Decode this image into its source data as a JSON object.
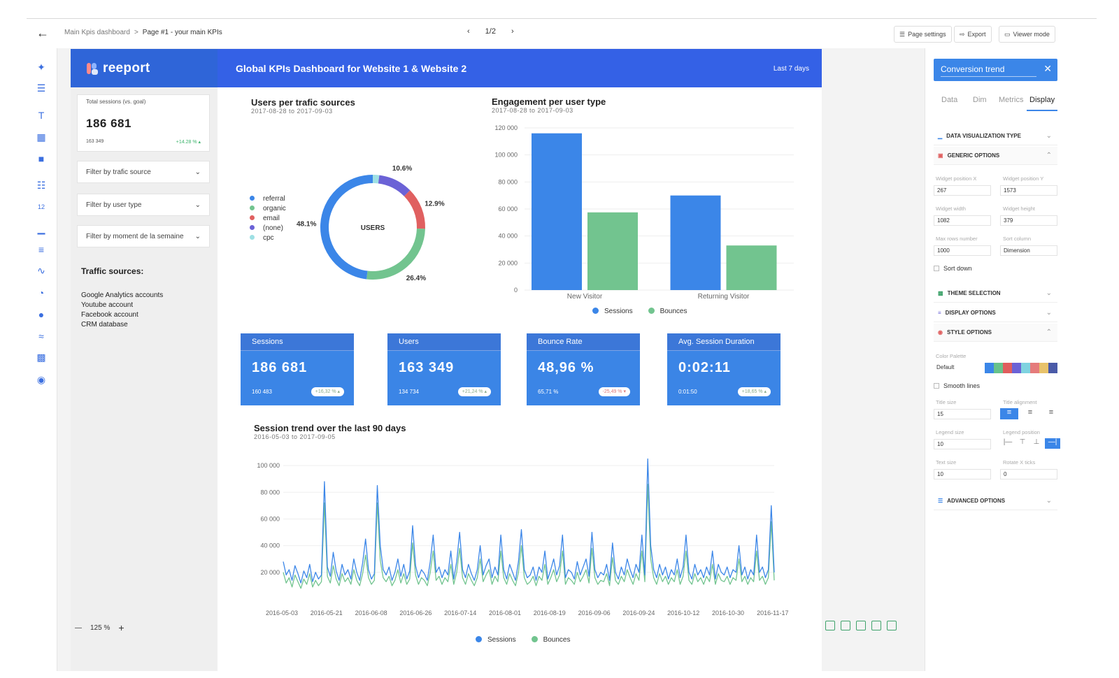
{
  "topbar": {
    "breadcrumb": [
      "Main Kpis dashboard",
      ">",
      "Page #1 - your main KPIs"
    ],
    "page_indicator": "1/2",
    "buttons": [
      "Page settings",
      "Export",
      "Viewer mode"
    ]
  },
  "brand": {
    "name": "reeport"
  },
  "header": {
    "title": "Global KPIs Dashboard for Website 1 & Website 2",
    "period": "Last 7 days"
  },
  "sidebar": {
    "kpi": {
      "label": "Total sessions (vs. goal)",
      "value": "186 681",
      "sub": "163 349",
      "change": "+14.28 % ▴"
    },
    "filters": [
      "Filter by trafic source",
      "Filter by user type",
      "Filter by moment de la semaine"
    ],
    "sources_title": "Traffic sources:",
    "sources": [
      "Google Analytics accounts",
      "Youtube account",
      "Facebook account",
      "CRM database"
    ]
  },
  "zoom": {
    "minus": "—",
    "value": "125 %",
    "plus": "+"
  },
  "kpis": [
    {
      "label": "Sessions",
      "value": "186 681",
      "sub": "160 483",
      "change": "+16,32 % ▴"
    },
    {
      "label": "Users",
      "value": "163 349",
      "sub": "134 734",
      "change": "+21,24 % ▴"
    },
    {
      "label": "Bounce Rate",
      "value": "48,96 %",
      "sub": "65,71 %",
      "change": "-25,49 % ▾"
    },
    {
      "label": "Avg. Session Duration",
      "value": "0:02:11",
      "sub": "0:01:50",
      "change": "+18,65 % ▴"
    }
  ],
  "right_panel": {
    "title": "Conversion trend",
    "tabs": [
      "Data",
      "Dim",
      "Metrics",
      "Display"
    ],
    "active_tab": "Display",
    "sections": {
      "dataviz": "DATA VISUALIZATION TYPE",
      "generic": "GENERIC OPTIONS",
      "theme": "THEME SELECTION",
      "display": "DISPLAY OPTIONS",
      "style": "STYLE OPTIONS",
      "advanced": "ADVANCED OPTIONS"
    },
    "fields": {
      "pos_x_label": "Widget position X",
      "pos_x": "267",
      "pos_y_label": "Widget position Y",
      "pos_y": "1573",
      "width_label": "Widget width",
      "width": "1082",
      "height_label": "Widget height",
      "height": "379",
      "maxrows_label": "Max rows number",
      "maxrows": "1000",
      "sortcol_label": "Sort column",
      "sortcol": "Dimension",
      "sortdown": "Sort down",
      "palette_label": "Color Palette",
      "palette": "Default",
      "smooth": "Smooth lines",
      "titlesize_label": "Title size",
      "titlesize": "15",
      "titlealign_label": "Title alignment",
      "legendsize_label": "Legend size",
      "legendsize": "10",
      "legendpos_label": "Legend position",
      "textsize_label": "Text size",
      "textsize": "10",
      "rotate_label": "Rotate X ticks",
      "rotate": "0"
    },
    "palette_colors": [
      "#3b86e8",
      "#67c28b",
      "#e05d5d",
      "#6b62d6",
      "#7fd3e0",
      "#e57b7b",
      "#e8c26a",
      "#4a5aa8"
    ]
  },
  "colors": {
    "blue": "#3b86e8",
    "green": "#72c48f",
    "red": "#e06060",
    "purple": "#6b62d6",
    "teal": "#9ee0e4"
  },
  "chart_data": [
    {
      "type": "pie",
      "title": "Users per trafic sources",
      "subtitle": "2017-08-28 to 2017-09-03",
      "center_label": "USERS",
      "labels": [
        "referral",
        "organic",
        "email",
        "(none)",
        "cpc"
      ],
      "values": [
        48.1,
        26.4,
        12.9,
        10.6,
        2.0
      ],
      "value_labels": [
        "48.1%",
        "26.4%",
        "12.9%",
        "10.6%",
        ""
      ],
      "colors": [
        "#3b86e8",
        "#72c48f",
        "#e06060",
        "#6b62d6",
        "#9ee0e4"
      ]
    },
    {
      "type": "bar",
      "title": "Engagement per user type",
      "subtitle": "2017-08-28 to 2017-09-03",
      "categories": [
        "New Visitor",
        "Returning Visitor"
      ],
      "series": [
        {
          "name": "Sessions",
          "values": [
            116000,
            70000
          ],
          "color": "#3b86e8"
        },
        {
          "name": "Bounces",
          "values": [
            57500,
            33000
          ],
          "color": "#72c48f"
        }
      ],
      "ylim": [
        0,
        120000
      ],
      "yticks": [
        "0",
        "20 000",
        "40 000",
        "60 000",
        "80 000",
        "100 000",
        "120 000"
      ]
    },
    {
      "type": "line",
      "title": "Session trend over the last 90 days",
      "subtitle": "2016-05-03 to 2017-09-05",
      "xticks": [
        "2016-05-03",
        "2016-05-21",
        "2016-06-08",
        "2016-06-26",
        "2016-07-14",
        "2016-08-01",
        "2016-08-19",
        "2016-09-06",
        "2016-09-24",
        "2016-10-12",
        "2016-10-30",
        "2016-11-17"
      ],
      "yticks": [
        "20 000",
        "40 000",
        "60 000",
        "80 000",
        "100 000"
      ],
      "ylim": [
        0,
        110000
      ],
      "series": [
        {
          "name": "Sessions",
          "color": "#3b86e8",
          "values": [
            28000,
            18000,
            22000,
            14000,
            25000,
            19000,
            12000,
            21000,
            16000,
            26000,
            13000,
            20000,
            15000,
            18000,
            88000,
            24000,
            17000,
            35000,
            21000,
            14000,
            26000,
            18000,
            22000,
            15000,
            30000,
            20000,
            14000,
            27000,
            45000,
            22000,
            15000,
            19000,
            85000,
            40000,
            22000,
            18000,
            24000,
            14000,
            20000,
            30000,
            17000,
            26000,
            15000,
            21000,
            55000,
            25000,
            16000,
            22000,
            19000,
            14000,
            28000,
            48000,
            20000,
            24000,
            16000,
            22000,
            18000,
            36000,
            15000,
            28000,
            50000,
            22000,
            16000,
            26000,
            19000,
            14000,
            22000,
            40000,
            18000,
            25000,
            30000,
            16000,
            24000,
            18000,
            48000,
            22000,
            15000,
            26000,
            20000,
            14000,
            28000,
            52000,
            22000,
            16000,
            18000,
            24000,
            14000,
            24000,
            20000,
            36000,
            15000,
            22000,
            30000,
            18000,
            25000,
            48000,
            16000,
            22000,
            20000,
            15000,
            28000,
            18000,
            24000,
            30000,
            17000,
            50000,
            22000,
            16000,
            20000,
            18000,
            26000,
            14000,
            42000,
            20000,
            15000,
            24000,
            18000,
            30000,
            22000,
            16000,
            26000,
            20000,
            48000,
            18000,
            105000,
            40000,
            22000,
            16000,
            26000,
            18000,
            24000,
            15000,
            22000,
            18000,
            30000,
            16000,
            24000,
            48000,
            20000,
            15000,
            26000,
            18000,
            22000,
            16000,
            24000,
            18000,
            36000,
            15000,
            26000,
            20000,
            18000,
            24000,
            16000,
            22000,
            20000,
            40000,
            18000,
            24000,
            15000,
            22000,
            18000,
            48000,
            20000,
            24000,
            16000,
            22000,
            70000,
            20000
          ]
        },
        {
          "name": "Bounces",
          "color": "#72c48f",
          "values": [
            20000,
            12000,
            16000,
            9000,
            18000,
            13000,
            8000,
            15000,
            11000,
            19000,
            9000,
            14000,
            10000,
            13000,
            72000,
            17000,
            12000,
            25000,
            15000,
            10000,
            19000,
            13000,
            16000,
            11000,
            22000,
            14000,
            10000,
            19000,
            33000,
            16000,
            11000,
            14000,
            72000,
            29000,
            16000,
            13000,
            17000,
            10000,
            14000,
            22000,
            12000,
            19000,
            11000,
            15000,
            42000,
            18000,
            11000,
            16000,
            14000,
            10000,
            20000,
            36000,
            14000,
            17000,
            11000,
            16000,
            13000,
            26000,
            11000,
            20000,
            38000,
            16000,
            11000,
            19000,
            14000,
            10000,
            16000,
            30000,
            13000,
            18000,
            22000,
            11000,
            17000,
            13000,
            36000,
            16000,
            11000,
            19000,
            14000,
            10000,
            20000,
            40000,
            16000,
            11000,
            13000,
            17000,
            10000,
            17000,
            14000,
            26000,
            11000,
            16000,
            22000,
            13000,
            18000,
            36000,
            11000,
            16000,
            14000,
            11000,
            20000,
            13000,
            17000,
            22000,
            12000,
            38000,
            16000,
            11000,
            14000,
            13000,
            19000,
            10000,
            31000,
            14000,
            11000,
            17000,
            13000,
            22000,
            16000,
            11000,
            19000,
            14000,
            36000,
            13000,
            86000,
            30000,
            16000,
            11000,
            19000,
            13000,
            17000,
            11000,
            16000,
            13000,
            22000,
            11000,
            17000,
            36000,
            14000,
            11000,
            19000,
            13000,
            16000,
            11000,
            17000,
            13000,
            26000,
            11000,
            19000,
            14000,
            13000,
            17000,
            11000,
            16000,
            14000,
            30000,
            13000,
            17000,
            11000,
            16000,
            13000,
            36000,
            14000,
            17000,
            11000,
            16000,
            58000,
            14000
          ]
        }
      ]
    }
  ]
}
